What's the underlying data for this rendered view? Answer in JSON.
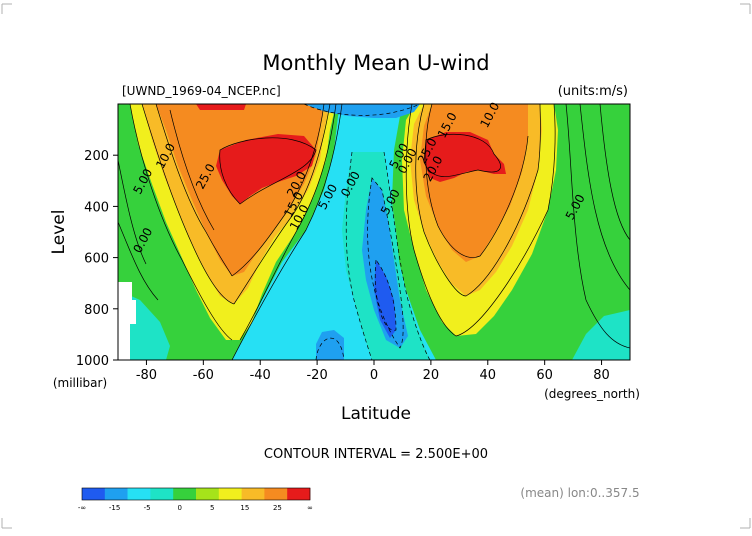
{
  "figure": {
    "title": "Monthly Mean U-wind",
    "file_label": "[UWND_1969-04_NCEP.nc]",
    "units_label": "(units:m/s)",
    "contour_interval_text": "CONTOUR INTERVAL = 2.500E+00",
    "mean_note": "(mean) lon:0..357.5"
  },
  "chart_data": {
    "type": "heatmap",
    "subtype": "filled-contour",
    "title": "Monthly Mean U-wind",
    "xlabel": "Latitude",
    "x_unit_label": "(degrees_north)",
    "ylabel": "Level",
    "y_unit_label": "(millibar)",
    "xlim": [
      -90,
      90
    ],
    "ylim": [
      1000,
      0
    ],
    "x_ticks": [
      -80,
      -60,
      -40,
      -20,
      0,
      20,
      40,
      60,
      80
    ],
    "x_tick_labels": [
      "-80",
      "-60",
      "-40",
      "-20",
      "0",
      "20",
      "40",
      "60",
      "80"
    ],
    "y_ticks": [
      200,
      400,
      600,
      800,
      1000
    ],
    "y_tick_labels": [
      "200",
      "400",
      "600",
      "800",
      "1000"
    ],
    "contour_interval": 2.5,
    "levels": [
      -15,
      -10,
      -5,
      0,
      5,
      10,
      15,
      20,
      25
    ],
    "contour_labels": [
      {
        "lat": -58,
        "lev": 290,
        "text": "25.0"
      },
      {
        "lat": -72,
        "lev": 210,
        "text": "10.0"
      },
      {
        "lat": -80,
        "lev": 310,
        "text": "5.00"
      },
      {
        "lat": -80,
        "lev": 540,
        "text": "0.00"
      },
      {
        "lat": -26,
        "lev": 320,
        "text": "20.0"
      },
      {
        "lat": -27,
        "lev": 400,
        "text": "15.0"
      },
      {
        "lat": -25,
        "lev": 450,
        "text": "10.0"
      },
      {
        "lat": -15,
        "lev": 370,
        "text": "5.00"
      },
      {
        "lat": -7,
        "lev": 320,
        "text": "0.00"
      },
      {
        "lat": 10,
        "lev": 210,
        "text": "5.00"
      },
      {
        "lat": 13,
        "lev": 230,
        "text": "0.00"
      },
      {
        "lat": 7,
        "lev": 390,
        "text": "5.00"
      },
      {
        "lat": 27,
        "lev": 90,
        "text": "15.0"
      },
      {
        "lat": 42,
        "lev": 50,
        "text": "10.0"
      },
      {
        "lat": 20,
        "lev": 190,
        "text": "25.0"
      },
      {
        "lat": 22,
        "lev": 260,
        "text": "20.0"
      },
      {
        "lat": 72,
        "lev": 410,
        "text": "5.00"
      }
    ],
    "colorbar": {
      "colors": [
        "#1f5bf0",
        "#1fa0f0",
        "#26e0f4",
        "#1ee3c6",
        "#36d13c",
        "#a6e31a",
        "#f1ef1d",
        "#f8bb27",
        "#f58b20",
        "#e61b1b"
      ],
      "labels": [
        "-∞",
        "-15",
        "-5",
        "0",
        "5",
        "15",
        "25",
        "∞"
      ]
    }
  }
}
